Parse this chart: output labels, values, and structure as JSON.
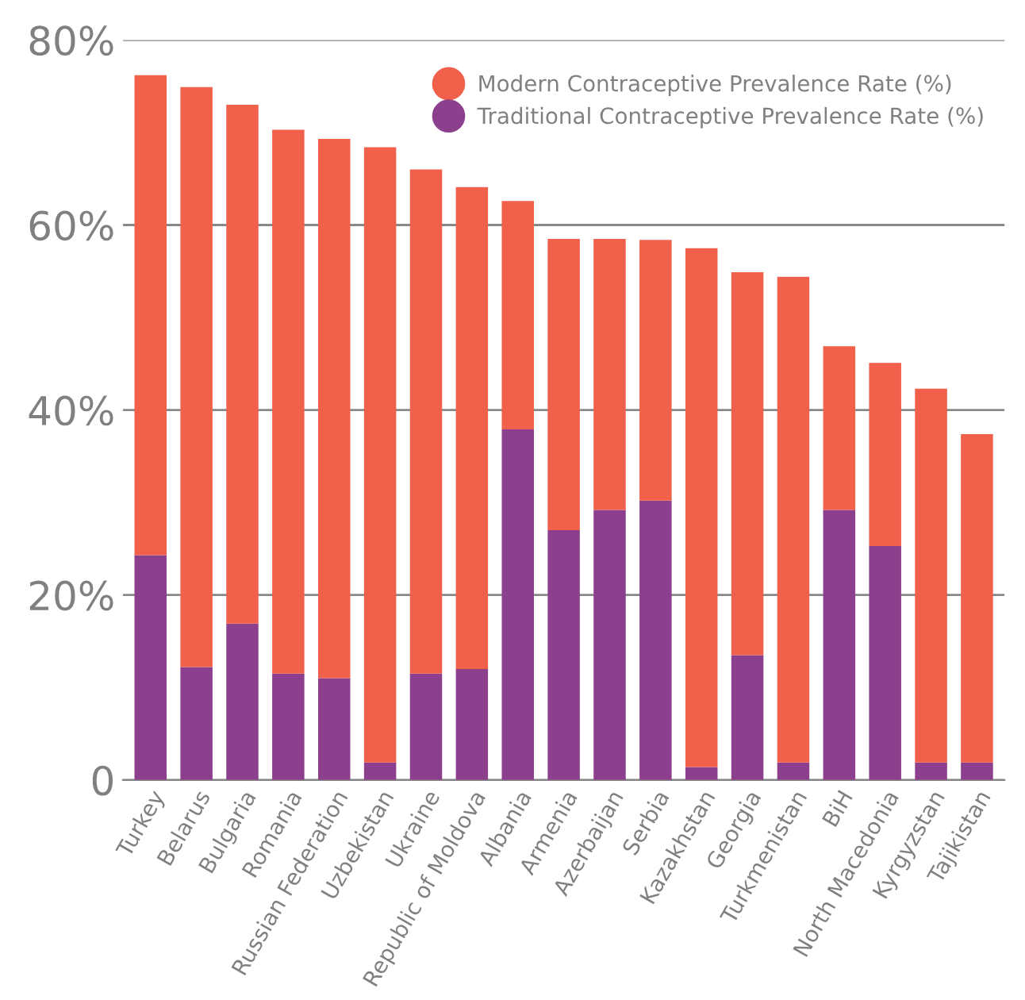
{
  "chart_data": {
    "type": "bar",
    "stacked": true,
    "categories": [
      "Turkey",
      "Belarus",
      "Bulgaria",
      "Romania",
      "Russian Federation",
      "Uzbekistan",
      "Ukraine",
      "Republic of Moldova",
      "Albania",
      "Armenia",
      "Azerbaijan",
      "Serbia",
      "Kazakhstan",
      "Georgia",
      "Turkmenistan",
      "BiH",
      "North Macedonia",
      "Kyrgyzstan",
      "Tajikistan"
    ],
    "series": [
      {
        "name": "Traditional Contraceptive Prevalence Rate (%)",
        "color": "#8b3f8c",
        "values": [
          24.3,
          12.2,
          16.9,
          11.5,
          11.0,
          1.9,
          11.5,
          12.0,
          37.9,
          27.0,
          29.2,
          30.2,
          1.4,
          13.5,
          1.9,
          29.2,
          25.3,
          1.9,
          1.9
        ]
      },
      {
        "name": "Modern Contraceptive Prevalence Rate (%)",
        "color": "#f0604a",
        "values": [
          51.9,
          62.7,
          56.1,
          58.8,
          58.3,
          66.5,
          54.5,
          52.1,
          24.7,
          31.5,
          29.3,
          28.2,
          56.1,
          41.4,
          52.5,
          17.7,
          19.8,
          40.4,
          35.5
        ]
      }
    ],
    "ylim": [
      0,
      80
    ],
    "yticks": [
      {
        "value": 0,
        "label": "0"
      },
      {
        "value": 20,
        "label": "20%"
      },
      {
        "value": 40,
        "label": "40%"
      },
      {
        "value": 60,
        "label": "60%"
      },
      {
        "value": 80,
        "label": "80%"
      }
    ],
    "grid": "y",
    "legend": "top right"
  }
}
